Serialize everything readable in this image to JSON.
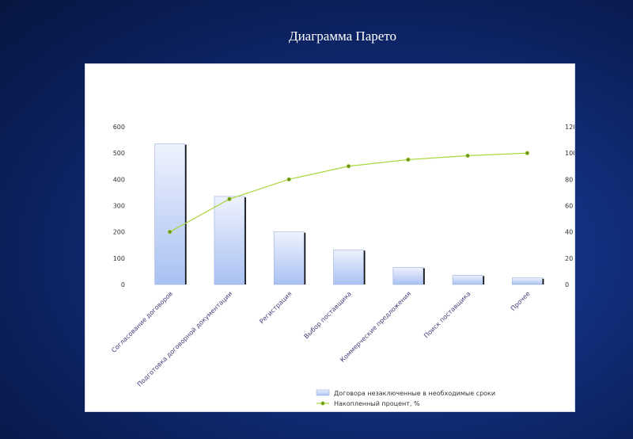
{
  "title": "Диаграмма Парето",
  "chart_data": {
    "type": "bar",
    "categories": [
      "Согласование договоров",
      "Подготовка договорной документации",
      "Регистрация",
      "Выбор поставщика",
      "Коммерческие предложения",
      "Поиск поставщика",
      "Прочее"
    ],
    "series": [
      {
        "name": "Договора незаключенные в необходимые сроки",
        "type": "bar",
        "axis": "left",
        "values": [
          535,
          335,
          200,
          132,
          65,
          35,
          25
        ]
      },
      {
        "name": "Накопленный процент, %",
        "type": "line",
        "axis": "right",
        "values": [
          40,
          65,
          80,
          90,
          95,
          98,
          100
        ]
      }
    ],
    "ylim": [
      0,
      600
    ],
    "y2lim": [
      0,
      120
    ],
    "yticks": [
      0,
      100,
      200,
      300,
      400,
      500,
      600
    ],
    "y2ticks": [
      0,
      20,
      40,
      60,
      80,
      100,
      120
    ],
    "grid": false,
    "legend": "bottom-right",
    "colors": {
      "bar_top": "#eef2fd",
      "bar_bottom": "#a9c1f2",
      "bar_edge": "#9aaedc",
      "bar_shadow": "#111111",
      "line": "#a8d63a",
      "marker": "#6b8f1e"
    }
  }
}
